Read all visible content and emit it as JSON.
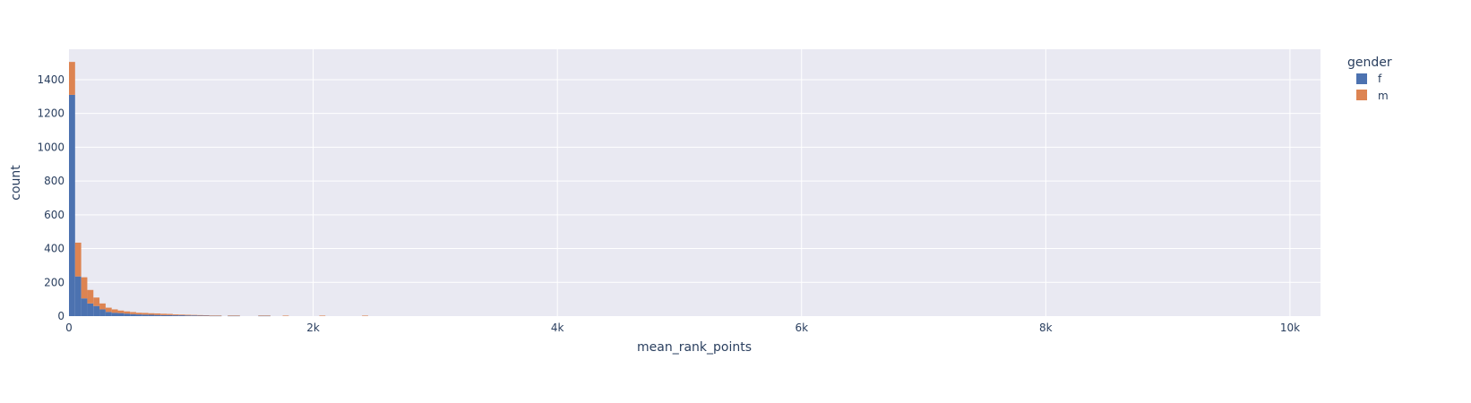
{
  "chart_data": {
    "type": "bar",
    "subtype": "stacked-histogram",
    "title": "",
    "xlabel": "mean_rank_points",
    "ylabel": "count",
    "xlim": [
      0,
      10250
    ],
    "ylim": [
      0,
      1580
    ],
    "xticks": [
      0,
      2000,
      4000,
      6000,
      8000,
      10000
    ],
    "xtick_labels": [
      "0",
      "2k",
      "4k",
      "6k",
      "8k",
      "10k"
    ],
    "yticks": [
      0,
      200,
      400,
      600,
      800,
      1000,
      1200,
      1400
    ],
    "ytick_labels": [
      "0",
      "200",
      "400",
      "600",
      "800",
      "1000",
      "1200",
      "1400"
    ],
    "grid": true,
    "bin_width": 50,
    "bin_starts": [
      0,
      50,
      100,
      150,
      200,
      250,
      300,
      350,
      400,
      450,
      500,
      550,
      600,
      650,
      700,
      750,
      800,
      850,
      900,
      950,
      1000,
      1050,
      1100,
      1150,
      1200,
      1300,
      1350,
      1550,
      1600,
      1750,
      2050,
      2400
    ],
    "series": [
      {
        "name": "f",
        "color": "#4C72B0",
        "values": [
          1310,
          235,
          105,
          75,
          60,
          40,
          25,
          20,
          18,
          15,
          12,
          10,
          9,
          8,
          7,
          6,
          6,
          5,
          5,
          4,
          4,
          3,
          3,
          2,
          2,
          2,
          2,
          2,
          2,
          0,
          0,
          0
        ]
      },
      {
        "name": "m",
        "color": "#DD8452",
        "values": [
          195,
          200,
          125,
          80,
          50,
          35,
          25,
          20,
          15,
          13,
          12,
          10,
          10,
          9,
          9,
          8,
          7,
          5,
          4,
          4,
          3,
          3,
          2,
          2,
          2,
          2,
          2,
          2,
          2,
          3,
          3,
          3
        ]
      }
    ],
    "legend": {
      "title": "gender",
      "position": "top-right",
      "entries": [
        "f",
        "m"
      ]
    }
  }
}
